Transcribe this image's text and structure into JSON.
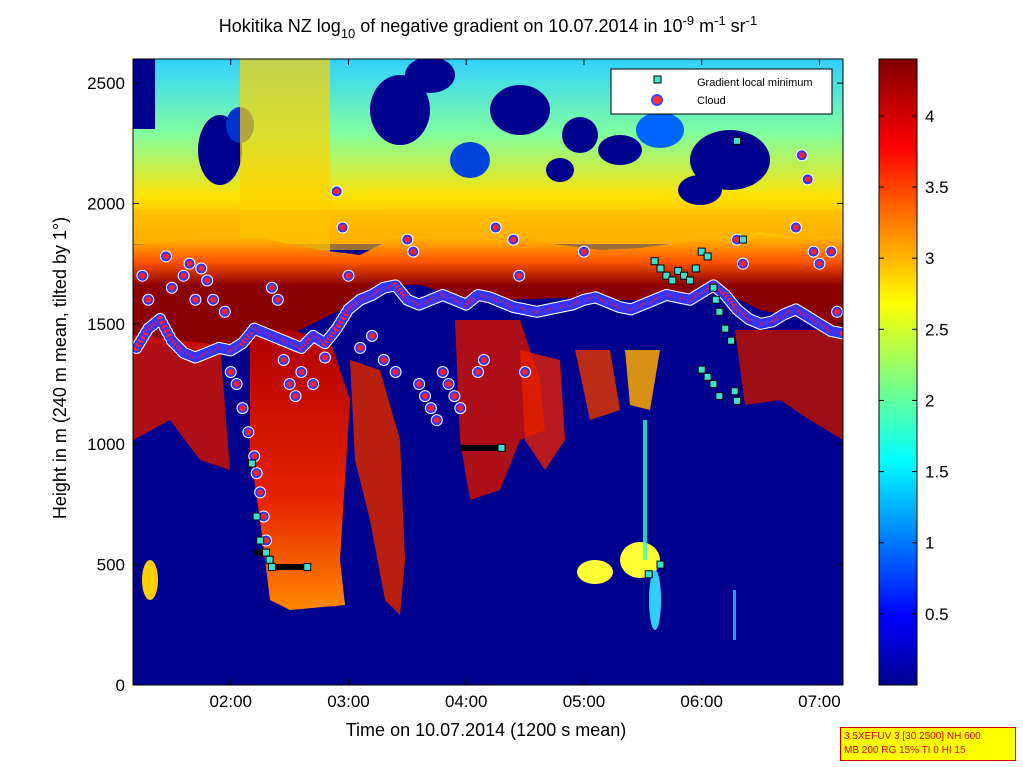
{
  "chart_data": {
    "type": "heatmap",
    "title_parts": {
      "prefix": "Hokitika NZ log",
      "log_base": "10",
      "middle": " of negative gradient on 10.07.2014 in 10",
      "exp1": "-9",
      "unit1": " m",
      "exp2": "-1",
      "unit2": " sr",
      "exp3": "-1"
    },
    "xlabel": "Time on 10.07.2014 (1200 s mean)",
    "ylabel": "Height in m (240 m mean, tilted by 1°)",
    "x_range_hours": [
      1.17,
      7.2
    ],
    "y_range_m": [
      0,
      2600
    ],
    "x_ticks": [
      "02:00",
      "03:00",
      "04:00",
      "05:00",
      "06:00",
      "07:00"
    ],
    "x_tick_values": [
      2,
      3,
      4,
      5,
      6,
      7
    ],
    "y_ticks": [
      0,
      500,
      1000,
      1500,
      2000,
      2500
    ],
    "colorbar": {
      "range": [
        0,
        4.4
      ],
      "ticks": [
        "0.5",
        "1",
        "1.5",
        "2",
        "2.5",
        "3",
        "3.5",
        "4"
      ],
      "tick_values": [
        0.5,
        1,
        1.5,
        2,
        2.5,
        3,
        3.5,
        4
      ],
      "colormap": "jet"
    },
    "legend": {
      "position": "top-right",
      "entries": [
        {
          "label": "Gradient local minimum",
          "marker": "square",
          "color": "#40e0d0"
        },
        {
          "label": "Cloud",
          "marker": "circle",
          "color": "#ff3333"
        }
      ]
    },
    "cloud_layer": {
      "x": [
        1.2,
        1.3,
        1.4,
        1.5,
        1.6,
        1.7,
        1.8,
        1.9,
        2.0,
        2.1,
        2.2,
        2.3,
        2.4,
        2.5,
        2.6,
        2.7,
        2.8,
        2.9,
        3.0,
        3.1,
        3.2,
        3.3,
        3.4,
        3.5,
        3.6,
        3.7,
        3.8,
        3.9,
        4.0,
        4.1,
        4.2,
        4.3,
        4.4,
        4.5,
        4.6,
        4.7,
        4.8,
        4.9,
        5.0,
        5.1,
        5.2,
        5.3,
        5.4,
        5.5,
        5.6,
        5.7,
        5.8,
        5.9,
        6.0,
        6.1,
        6.2,
        6.3,
        6.4,
        6.5,
        6.6,
        6.7,
        6.8,
        6.9,
        7.0,
        7.1,
        7.2
      ],
      "y": [
        1400,
        1480,
        1520,
        1430,
        1380,
        1360,
        1380,
        1400,
        1390,
        1420,
        1480,
        1460,
        1440,
        1420,
        1400,
        1450,
        1420,
        1480,
        1560,
        1600,
        1620,
        1650,
        1660,
        1600,
        1580,
        1600,
        1620,
        1600,
        1580,
        1620,
        1610,
        1590,
        1570,
        1560,
        1550,
        1560,
        1570,
        1580,
        1600,
        1610,
        1590,
        1570,
        1560,
        1580,
        1600,
        1620,
        1610,
        1600,
        1630,
        1660,
        1620,
        1560,
        1520,
        1500,
        1510,
        1540,
        1560,
        1530,
        1500,
        1470,
        1460
      ]
    },
    "cloud_scattered": {
      "x": [
        1.25,
        1.3,
        1.45,
        1.5,
        1.6,
        1.65,
        1.7,
        1.75,
        1.8,
        1.85,
        1.95,
        2.0,
        2.05,
        2.1,
        2.15,
        2.2,
        2.22,
        2.25,
        2.28,
        2.3,
        2.35,
        2.4,
        2.45,
        2.5,
        2.55,
        2.6,
        2.7,
        2.8,
        2.9,
        2.95,
        3.0,
        3.1,
        3.2,
        3.3,
        3.4,
        3.5,
        3.55,
        3.6,
        3.65,
        3.7,
        3.75,
        3.8,
        3.85,
        3.9,
        3.95,
        4.1,
        4.15,
        4.25,
        4.4,
        4.45,
        4.5,
        5.0,
        6.3,
        6.35,
        6.8,
        6.85,
        6.9,
        6.95,
        7.0,
        7.1,
        7.15
      ],
      "y": [
        1700,
        1600,
        1780,
        1650,
        1700,
        1750,
        1600,
        1730,
        1680,
        1600,
        1550,
        1300,
        1250,
        1150,
        1050,
        950,
        880,
        800,
        700,
        600,
        1650,
        1600,
        1350,
        1250,
        1200,
        1300,
        1250,
        1360,
        2050,
        1900,
        1700,
        1400,
        1450,
        1350,
        1300,
        1850,
        1800,
        1250,
        1200,
        1150,
        1100,
        1300,
        1250,
        1200,
        1150,
        1300,
        1350,
        1900,
        1850,
        1700,
        1300,
        1800,
        1850,
        1750,
        1900,
        2200,
        2100,
        1800,
        1750,
        1800,
        1550
      ]
    },
    "gradient_min": {
      "x": [
        2.18,
        2.22,
        2.25,
        2.3,
        2.33,
        2.35,
        2.65,
        4.3,
        5.55,
        5.65,
        5.6,
        5.65,
        5.7,
        5.75,
        5.8,
        5.85,
        5.9,
        5.95,
        6.0,
        6.05,
        6.1,
        6.12,
        6.15,
        6.2,
        6.25,
        6.3,
        6.35,
        6.0,
        6.05,
        6.1,
        6.15,
        6.28,
        6.3
      ],
      "y": [
        920,
        700,
        600,
        550,
        520,
        490,
        490,
        985,
        460,
        500,
        1760,
        1730,
        1700,
        1680,
        1720,
        1700,
        1680,
        1730,
        1800,
        1780,
        1650,
        1600,
        1550,
        1480,
        1430,
        2260,
        1850,
        1310,
        1280,
        1250,
        1200,
        1220,
        1180
      ]
    },
    "black_segments": [
      {
        "x": [
          2.2,
          2.32
        ],
        "y": 550
      },
      {
        "x": [
          2.33,
          2.68
        ],
        "y": 490
      },
      {
        "x": [
          3.95,
          4.3
        ],
        "y": 985
      }
    ]
  },
  "info_box": {
    "line1": "3.5XEFUV 3 [30 2500] NH 600",
    "line2": "MB 200 RG 15% TI 0 HI 15"
  }
}
